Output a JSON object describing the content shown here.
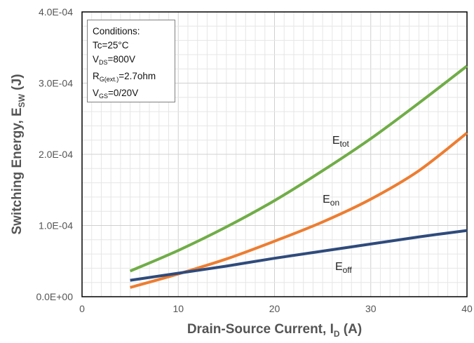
{
  "chart_data": {
    "type": "line",
    "xlabel": "Drain-Source Current, I",
    "xlabel_sub": "D",
    "xlabel_unit": " (A)",
    "ylabel": "Switching Energy, E",
    "ylabel_sub": "SW",
    "ylabel_unit": " (J)",
    "xlim": [
      0,
      40
    ],
    "ylim": [
      0,
      0.0004
    ],
    "x_ticks": [
      0,
      10,
      20,
      30,
      40
    ],
    "x_tick_labels": [
      "0",
      "10",
      "20",
      "30",
      "40"
    ],
    "y_ticks": [
      0,
      0.0001,
      0.0002,
      0.0003,
      0.0004
    ],
    "y_tick_labels": [
      "0.0E+00",
      "1.0E-04",
      "2.0E-04",
      "3.0E-04",
      "4.0E-04"
    ],
    "grid": true,
    "series": [
      {
        "name": "E",
        "name_sub": "tot",
        "color": "#70ad47",
        "x": [
          5,
          10,
          15,
          20,
          25,
          30,
          35,
          40
        ],
        "y": [
          3.6e-05,
          6.5e-05,
          9.8e-05,
          0.000135,
          0.000177,
          0.000222,
          0.000272,
          0.000324
        ]
      },
      {
        "name": "E",
        "name_sub": "on",
        "color": "#ed7d31",
        "x": [
          5,
          10,
          15,
          20,
          25,
          30,
          35,
          40
        ],
        "y": [
          1.3e-05,
          3.2e-05,
          5.3e-05,
          7.8e-05,
          0.000105,
          0.000137,
          0.000177,
          0.00023
        ]
      },
      {
        "name": "E",
        "name_sub": "off",
        "color": "#2f4b7c",
        "x": [
          5,
          10,
          15,
          20,
          25,
          30,
          35,
          40
        ],
        "y": [
          2.3e-05,
          3.3e-05,
          4.3e-05,
          5.4e-05,
          6.4e-05,
          7.4e-05,
          8.4e-05,
          9.3e-05
        ]
      }
    ]
  },
  "conditions": {
    "title": "Conditions:",
    "tc": "Tc=25°C",
    "vds_main": "V",
    "vds_sub": "DS",
    "vds_value": "=800V",
    "rg_main": "R",
    "rg_sub": "G(ext.)",
    "rg_value": "=2.7ohm",
    "vgs_main": "V",
    "vgs_sub": "GS",
    "vgs_value": "=0/20V"
  }
}
